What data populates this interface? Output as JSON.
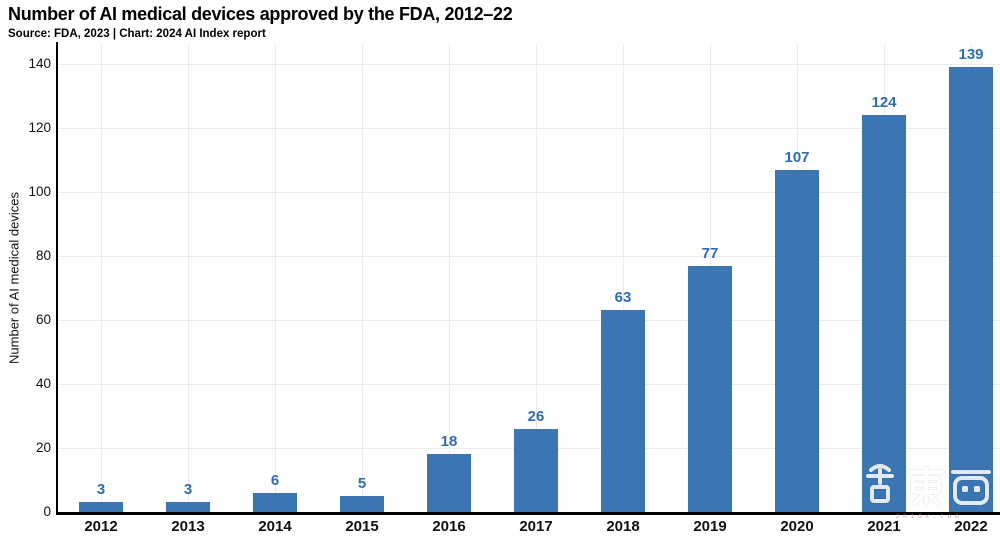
{
  "title": "Number of AI medical devices approved by the FDA, 2012–22",
  "subtitle": "Source: FDA, 2023 | Chart: 2024 AI Index report",
  "y_axis_label": "Number of AI medical devices",
  "watermark": {
    "logo_text": "智东西",
    "caption": "zhidx.com"
  },
  "chart_data": {
    "type": "bar",
    "categories": [
      "2012",
      "2013",
      "2014",
      "2015",
      "2016",
      "2017",
      "2018",
      "2019",
      "2020",
      "2021",
      "2022"
    ],
    "values": [
      3,
      3,
      6,
      5,
      18,
      26,
      63,
      77,
      107,
      124,
      139
    ],
    "title": "Number of AI medical devices approved by the FDA, 2012–22",
    "xlabel": "",
    "ylabel": "Number of AI medical devices",
    "ylim": [
      0,
      140
    ],
    "yticks": [
      0,
      20,
      40,
      60,
      80,
      100,
      120,
      140
    ],
    "grid": true,
    "legend": false,
    "bar_color": "#3b76b3",
    "value_label_color": "#2e6db6",
    "gridline_color": "#ececec",
    "axis_color": "#000000"
  }
}
